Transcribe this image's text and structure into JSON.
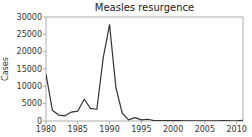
{
  "chart_data": {
    "type": "line",
    "title": "Measles resurgence",
    "ylabel": "Cases",
    "x": [
      1980,
      1981,
      1982,
      1983,
      1984,
      1985,
      1986,
      1987,
      1988,
      1989,
      1990,
      1991,
      1992,
      1993,
      1994,
      1995,
      1996,
      1997,
      1998,
      1999,
      2000,
      2001,
      2002,
      2003,
      2004,
      2005,
      2006,
      2007,
      2008,
      2009,
      2010,
      2011
    ],
    "values": [
      13506,
      3124,
      1714,
      1497,
      2587,
      2822,
      6282,
      3655,
      3396,
      18193,
      27786,
      9643,
      2237,
      312,
      963,
      309,
      508,
      138,
      100,
      100,
      86,
      116,
      44,
      56,
      37,
      66,
      55,
      43,
      140,
      71,
      63,
      220
    ],
    "color": "#333333",
    "xlim": [
      1980,
      2011
    ],
    "xticks": [
      1980,
      1985,
      1990,
      1995,
      2000,
      2005,
      2010
    ],
    "ylim": [
      0,
      30000
    ],
    "yticks": [
      0,
      5000,
      10000,
      15000,
      20000,
      25000,
      30000
    ],
    "grid": false
  }
}
